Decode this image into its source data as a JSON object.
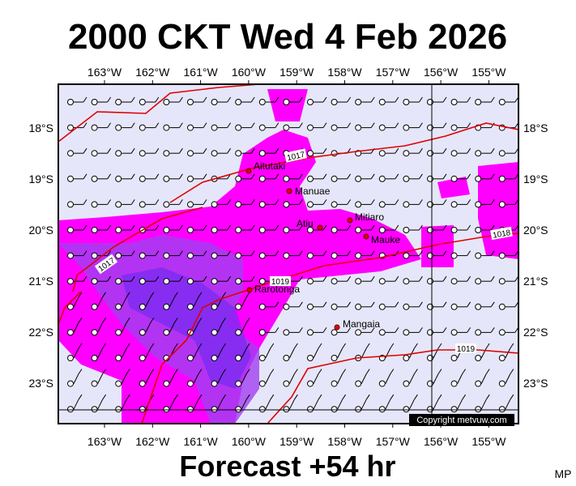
{
  "header": {
    "title": "2000 CKT Wed 4 Feb 2026"
  },
  "map": {
    "lon_labels": [
      "163°W",
      "162°W",
      "161°W",
      "160°W",
      "159°W",
      "158°W",
      "157°W",
      "156°W",
      "155°W"
    ],
    "lat_labels": [
      "18°S",
      "19°S",
      "20°S",
      "21°S",
      "22°S",
      "23°S"
    ],
    "places": [
      "Aitutaki",
      "Manuae",
      "Atiu",
      "Mitiaro",
      "Mauke",
      "Rarotonga",
      "Mangaia"
    ],
    "isobar_labels": [
      "1017",
      "1017",
      "1019",
      "1018",
      "1019"
    ],
    "copyright": "Copyright metvuw.com"
  },
  "footer": {
    "forecast": "Forecast +54 hr",
    "credit": "MP"
  }
}
